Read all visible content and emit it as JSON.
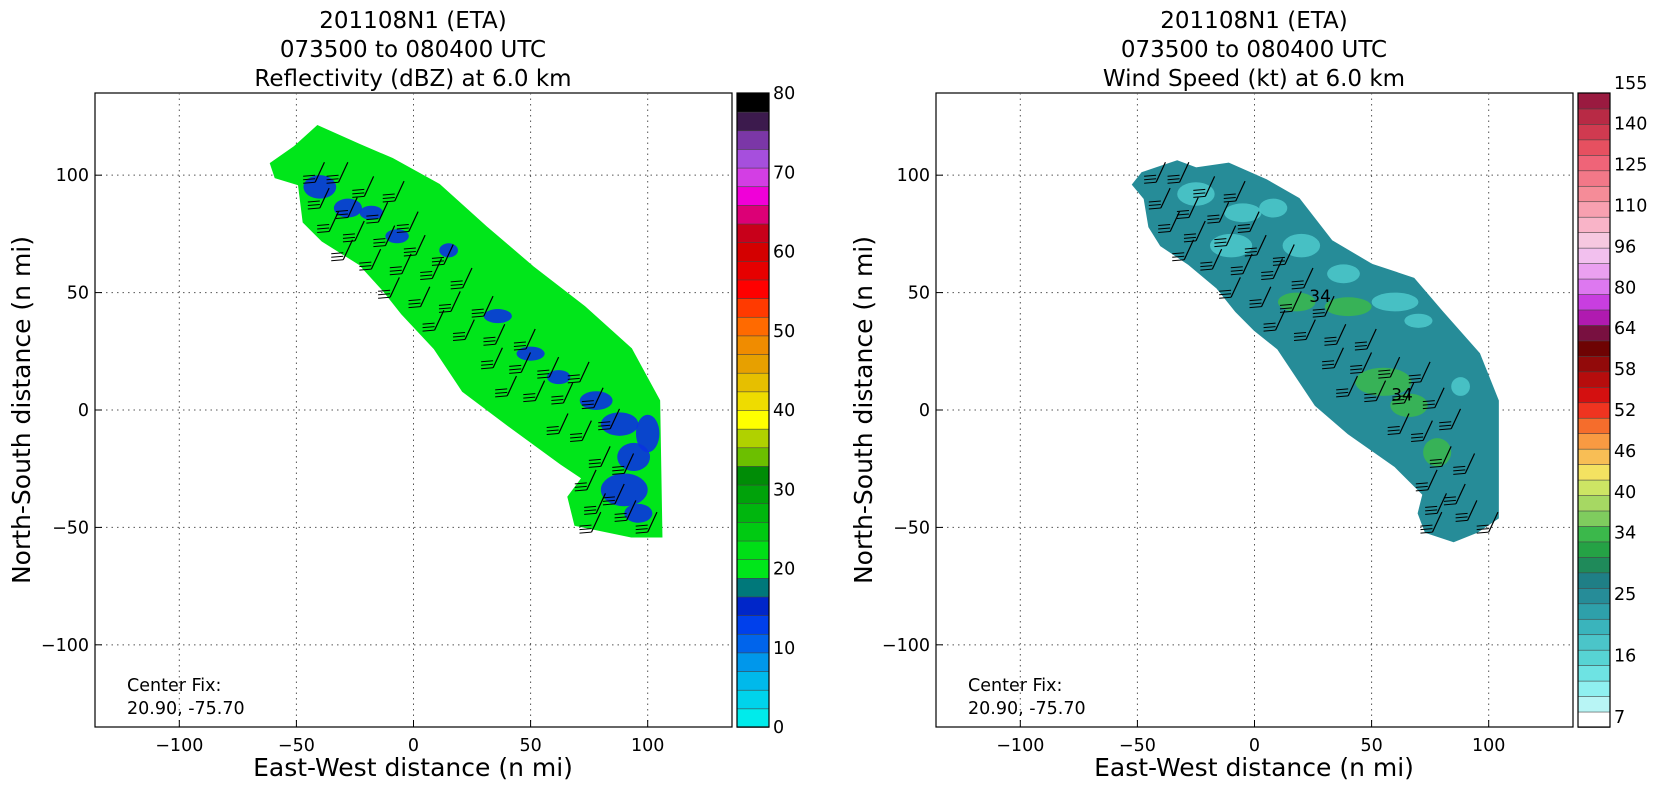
{
  "chart_data": [
    {
      "type": "heatmap",
      "title": [
        "201108N1 (ETA)",
        "073500 to 080400 UTC",
        "Reflectivity (dBZ) at 6.0 km"
      ],
      "xlabel": "East-West distance (n mi)",
      "ylabel": "North-South distance (n mi)",
      "xlim": [
        -136,
        136
      ],
      "ylim": [
        -135,
        135
      ],
      "xticks": [
        -100,
        -50,
        0,
        50,
        100
      ],
      "yticks": [
        -100,
        -50,
        0,
        50,
        100
      ],
      "xtick_labels": [
        "−100",
        "−50",
        "0",
        "50",
        "100"
      ],
      "ytick_labels": [
        "−100",
        "−50",
        "0",
        "50",
        "100"
      ],
      "grid": true,
      "annotation": [
        "Center Fix:",
        "20.90, -75.70"
      ],
      "colorbar": {
        "min": 0,
        "max": 80,
        "step": 5,
        "tick_values": [
          0,
          10,
          20,
          30,
          40,
          50,
          60,
          70,
          80
        ],
        "tick_labels": [
          "0",
          "10",
          "20",
          "30",
          "40",
          "50",
          "60",
          "70",
          "80"
        ],
        "colors": [
          "#00ebeb",
          "#00d3eb",
          "#00b9eb",
          "#0097eb",
          "#0064eb",
          "#0040eb",
          "#0026c9",
          "#00787a",
          "#00e61a",
          "#00de16",
          "#00ca12",
          "#00b60e",
          "#00a20a",
          "#008c06",
          "#6cbf00",
          "#b0d100",
          "#ffff00",
          "#eedc00",
          "#e6bf00",
          "#e7a000",
          "#f08c00",
          "#ff6a00",
          "#ff3a00",
          "#ff0000",
          "#e60000",
          "#d40000",
          "#c8001a",
          "#dc0076",
          "#f000d8",
          "#d33ee4",
          "#a64fdd",
          "#7b37a7",
          "#3c1a4d",
          "#000000"
        ],
        "color_steps": 16
      },
      "echo_band": {
        "value_range_dbz": [
          10,
          25
        ],
        "dominant_color": "#00e61a",
        "core_color": "#0a33e0",
        "outline": [
          [
            -51,
            112
          ],
          [
            -41,
            121
          ],
          [
            -23,
            113
          ],
          [
            -9,
            107
          ],
          [
            11,
            96
          ],
          [
            31,
            78
          ],
          [
            51,
            61
          ],
          [
            73,
            44
          ],
          [
            93,
            26
          ],
          [
            105,
            4
          ],
          [
            106,
            -54
          ],
          [
            93,
            -54
          ],
          [
            69,
            -49
          ],
          [
            66,
            -37
          ],
          [
            72,
            -29
          ],
          [
            63,
            -23
          ],
          [
            41,
            -7
          ],
          [
            21,
            8
          ],
          [
            9,
            26
          ],
          [
            -5,
            41
          ],
          [
            -13,
            51
          ],
          [
            -23,
            62
          ],
          [
            -39,
            72
          ],
          [
            -47,
            80
          ],
          [
            -49,
            96
          ],
          [
            -59,
            99
          ],
          [
            -61,
            105
          ]
        ]
      },
      "wind_barbs": {
        "units": "kt",
        "points": [
          [
            -42,
            97
          ],
          [
            -32,
            97
          ],
          [
            -21,
            91
          ],
          [
            -8,
            89
          ],
          [
            -40,
            86
          ],
          [
            -28,
            82
          ],
          [
            -15,
            80
          ],
          [
            -2,
            76
          ],
          [
            -36,
            76
          ],
          [
            -25,
            72
          ],
          [
            -12,
            70
          ],
          [
            1,
            66
          ],
          [
            13,
            62
          ],
          [
            -30,
            64
          ],
          [
            -18,
            60
          ],
          [
            -5,
            58
          ],
          [
            8,
            56
          ],
          [
            21,
            52
          ],
          [
            -10,
            48
          ],
          [
            3,
            44
          ],
          [
            16,
            42
          ],
          [
            30,
            40
          ],
          [
            9,
            34
          ],
          [
            22,
            30
          ],
          [
            35,
            28
          ],
          [
            48,
            26
          ],
          [
            34,
            18
          ],
          [
            46,
            16
          ],
          [
            58,
            14
          ],
          [
            71,
            12
          ],
          [
            40,
            6
          ],
          [
            52,
            4
          ],
          [
            64,
            3
          ],
          [
            77,
            1
          ],
          [
            84,
            -8
          ],
          [
            62,
            -10
          ],
          [
            72,
            -13
          ],
          [
            80,
            -24
          ],
          [
            90,
            -27
          ],
          [
            74,
            -34
          ],
          [
            86,
            -40
          ],
          [
            78,
            -44
          ],
          [
            91,
            -47
          ],
          [
            76,
            -52
          ],
          [
            100,
            -52
          ]
        ]
      }
    },
    {
      "type": "heatmap",
      "title": [
        "201108N1 (ETA)",
        "073500 to 080400 UTC",
        "Wind Speed (kt) at 6.0 km"
      ],
      "xlabel": "East-West distance (n mi)",
      "ylabel": "North-South distance (n mi)",
      "xlim": [
        -136,
        136
      ],
      "ylim": [
        -135,
        135
      ],
      "xticks": [
        -100,
        -50,
        0,
        50,
        100
      ],
      "yticks": [
        -100,
        -50,
        0,
        50,
        100
      ],
      "xtick_labels": [
        "−100",
        "−50",
        "0",
        "50",
        "100"
      ],
      "ytick_labels": [
        "−100",
        "−50",
        "0",
        "50",
        "100"
      ],
      "grid": true,
      "annotation": [
        "Center Fix:",
        "20.90, -75.70"
      ],
      "colorbar": {
        "tick_labels": [
          "7",
          "16",
          "25",
          "34",
          "40",
          "46",
          "52",
          "58",
          "64",
          "80",
          "96",
          "110",
          "125",
          "140",
          "155"
        ],
        "tick_boxes": [
          0,
          3,
          6,
          9,
          11,
          13,
          15,
          17,
          19,
          21,
          23,
          25,
          27,
          29,
          31
        ],
        "colors": [
          "#ffffff",
          "#b8f5f5",
          "#8ff0f0",
          "#6ee3e3",
          "#57d4d4",
          "#4bc5c9",
          "#3ab4bc",
          "#2ea0aa",
          "#268c98",
          "#1f7f86",
          "#1f8a5a",
          "#25a245",
          "#3bb84b",
          "#7fcc5e",
          "#a6d863",
          "#cde564",
          "#f4e261",
          "#f8be55",
          "#f89a42",
          "#f56d2c",
          "#ef3420",
          "#d41010",
          "#b60d0d",
          "#920a0a",
          "#6e0303",
          "#781040",
          "#b01ab0",
          "#c83ee0",
          "#dd78f0",
          "#eaa0f0",
          "#f2c0ee",
          "#f6c8e0",
          "#f9b4c8",
          "#f8a0b0",
          "#f58c98",
          "#f27888",
          "#ef6478",
          "#e65060",
          "#d03a50",
          "#b82a45",
          "#9a1a40"
        ],
        "box_count": 31
      },
      "speed_field": {
        "dominant_color": "#268c98",
        "light_color": "#4bc5c9",
        "outline": [
          [
            -48,
            101
          ],
          [
            -42,
            103
          ],
          [
            -33,
            106
          ],
          [
            -25,
            103
          ],
          [
            -11,
            105
          ],
          [
            5,
            98
          ],
          [
            19,
            90
          ],
          [
            33,
            72
          ],
          [
            50,
            62
          ],
          [
            68,
            56
          ],
          [
            80,
            42
          ],
          [
            96,
            24
          ],
          [
            104,
            4
          ],
          [
            104,
            -46
          ],
          [
            95,
            -52
          ],
          [
            85,
            -56
          ],
          [
            73,
            -52
          ],
          [
            70,
            -44
          ],
          [
            72,
            -36
          ],
          [
            60,
            -24
          ],
          [
            40,
            -10
          ],
          [
            26,
            2
          ],
          [
            10,
            26
          ],
          [
            0,
            34
          ],
          [
            -8,
            42
          ],
          [
            -16,
            52
          ],
          [
            -28,
            62
          ],
          [
            -40,
            70
          ],
          [
            -45,
            78
          ],
          [
            -47,
            90
          ],
          [
            -52,
            96
          ]
        ],
        "contour_labels": [
          "34",
          "34"
        ]
      },
      "wind_barbs": {
        "units": "kt",
        "points": [
          [
            -42,
            97
          ],
          [
            -32,
            97
          ],
          [
            -21,
            91
          ],
          [
            -8,
            89
          ],
          [
            -40,
            86
          ],
          [
            -28,
            82
          ],
          [
            -15,
            80
          ],
          [
            -2,
            76
          ],
          [
            -36,
            76
          ],
          [
            -25,
            72
          ],
          [
            -12,
            70
          ],
          [
            1,
            66
          ],
          [
            13,
            62
          ],
          [
            -30,
            64
          ],
          [
            -18,
            60
          ],
          [
            -5,
            58
          ],
          [
            8,
            56
          ],
          [
            21,
            52
          ],
          [
            -10,
            48
          ],
          [
            3,
            44
          ],
          [
            16,
            42
          ],
          [
            30,
            40
          ],
          [
            9,
            34
          ],
          [
            22,
            30
          ],
          [
            35,
            28
          ],
          [
            48,
            26
          ],
          [
            34,
            18
          ],
          [
            46,
            16
          ],
          [
            58,
            14
          ],
          [
            71,
            12
          ],
          [
            40,
            6
          ],
          [
            52,
            4
          ],
          [
            64,
            3
          ],
          [
            77,
            1
          ],
          [
            84,
            -8
          ],
          [
            62,
            -10
          ],
          [
            72,
            -13
          ],
          [
            80,
            -24
          ],
          [
            90,
            -27
          ],
          [
            74,
            -34
          ],
          [
            86,
            -40
          ],
          [
            78,
            -44
          ],
          [
            91,
            -47
          ],
          [
            76,
            -52
          ],
          [
            100,
            -52
          ]
        ]
      }
    }
  ]
}
